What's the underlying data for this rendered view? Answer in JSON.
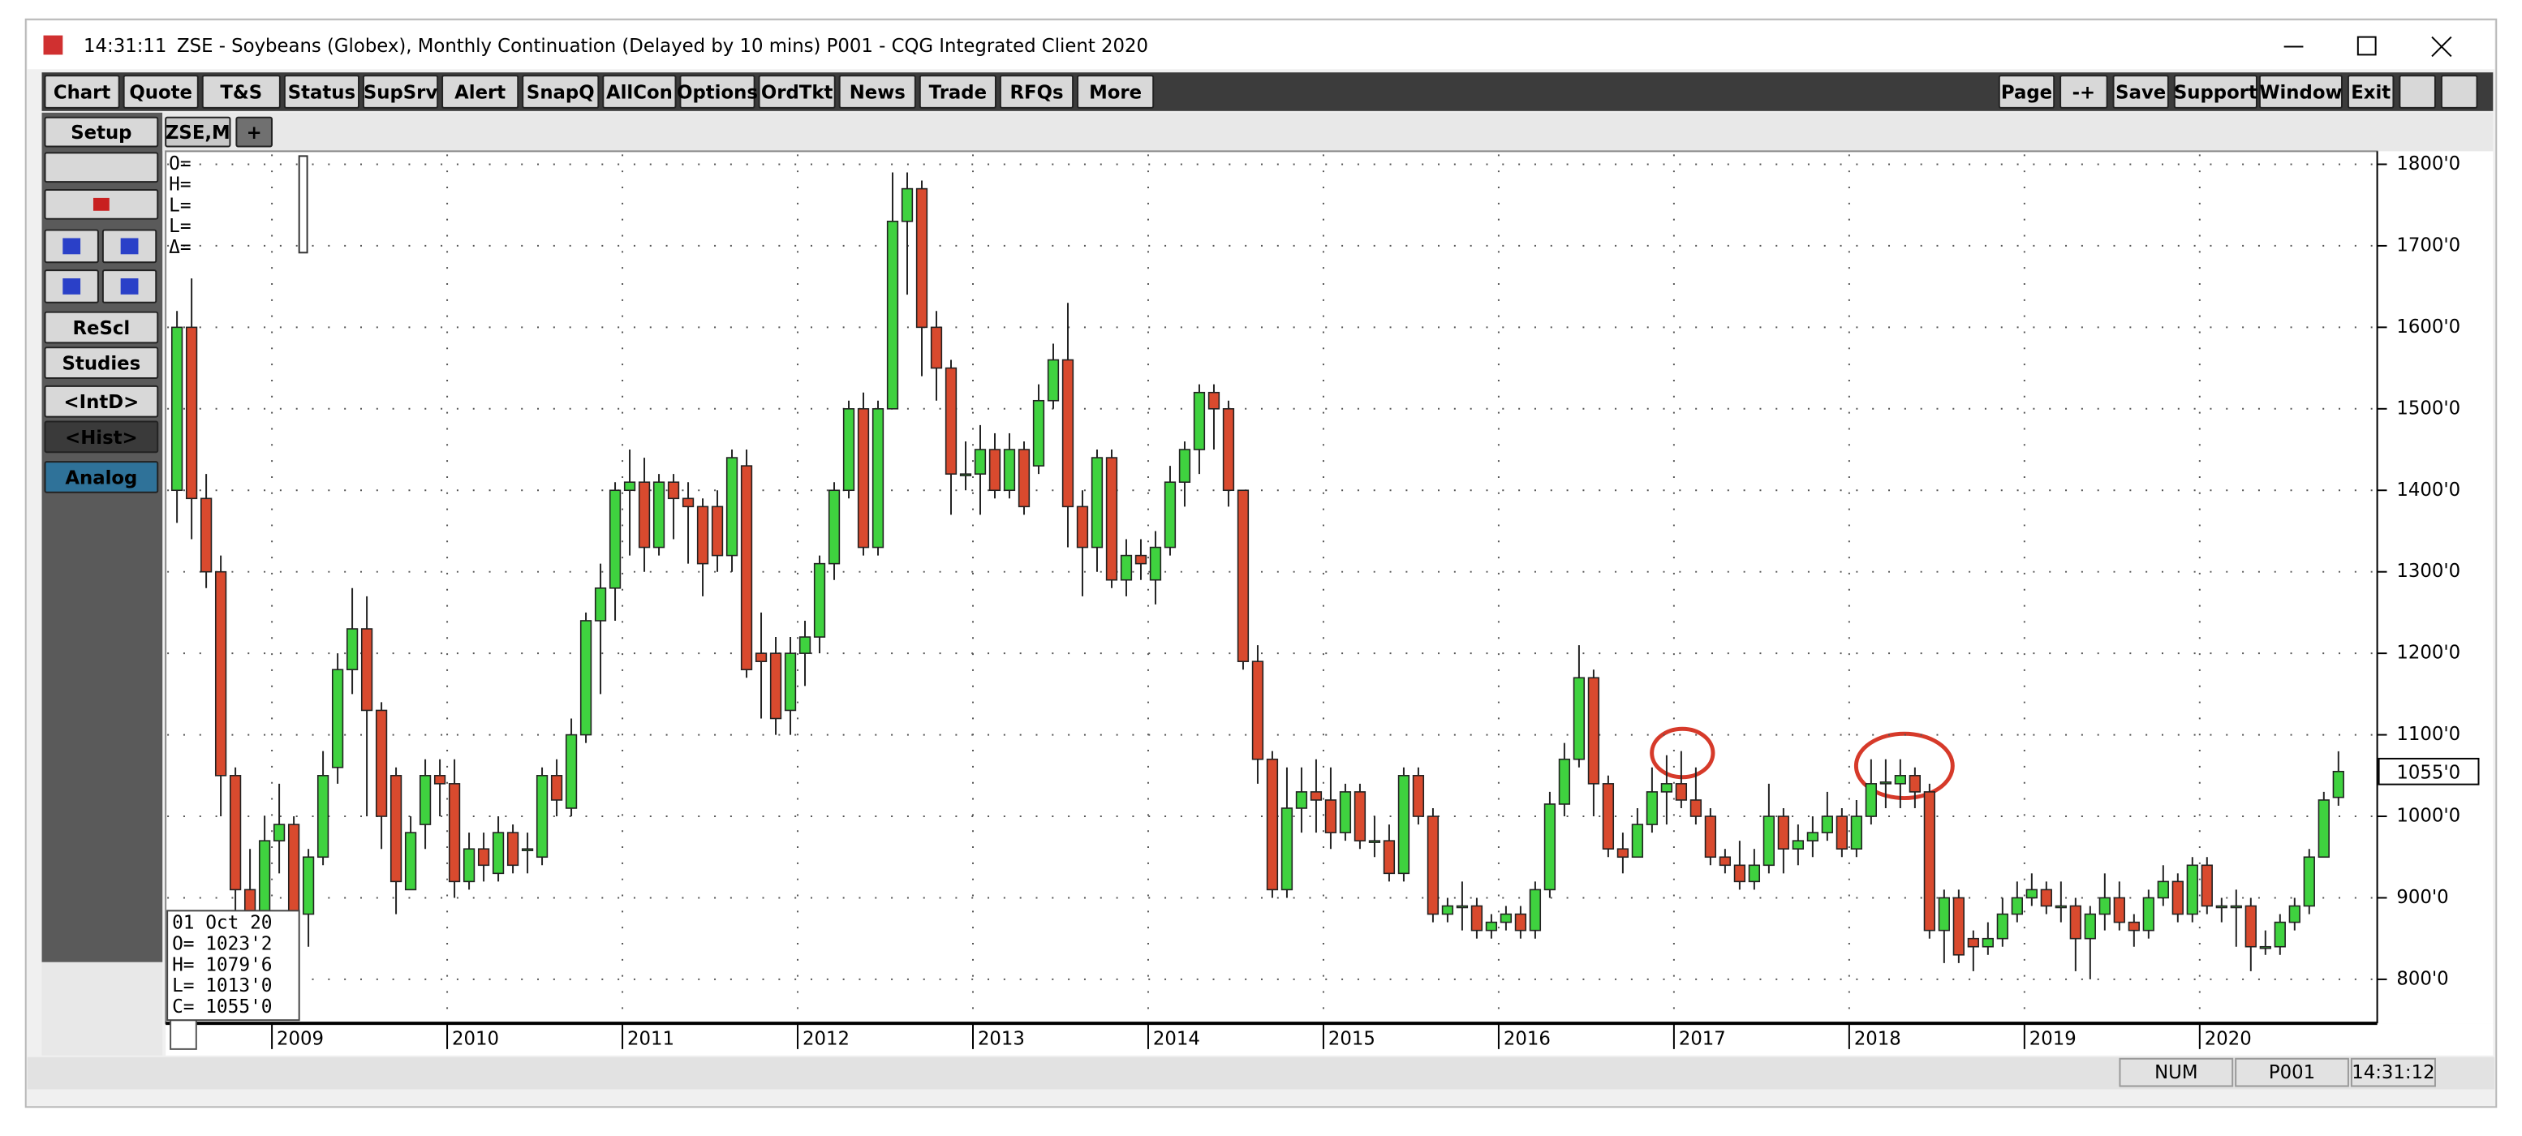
{
  "window": {
    "time": "14:31:11",
    "title": "ZSE - Soybeans (Globex), Monthly Continuation (Delayed by 10 mins)   P001 - CQG Integrated Client 2020"
  },
  "toolbar": {
    "left": [
      "Chart",
      "Quote",
      "T&S",
      "Status",
      "SupSrv",
      "Alert",
      "SnapQ",
      "AllCon",
      "Options",
      "OrdTkt",
      "News",
      "Trade",
      "RFQs",
      "More"
    ],
    "right": [
      "Page",
      "-+",
      "Save",
      "Support",
      "Window",
      "Exit"
    ]
  },
  "sidebar": {
    "setup": "Setup",
    "rescale": "ReScl",
    "studies": "Studies",
    "intd": "<IntD>",
    "hist": "<Hist>",
    "analog": "Analog"
  },
  "tab": {
    "label": "ZSE,M",
    "add": "+"
  },
  "status": {
    "num": "NUM",
    "page": "P001",
    "time": "14:31:12"
  },
  "chart_data": {
    "type": "candlestick",
    "categories": [
      null,
      null,
      null,
      null,
      null,
      null,
      null,
      "2009",
      null,
      null,
      null,
      null,
      null,
      null,
      null,
      null,
      null,
      null,
      null,
      "2010",
      null,
      null,
      null,
      null,
      null,
      null,
      null,
      null,
      null,
      null,
      null,
      "2011",
      null,
      null,
      null,
      null,
      null,
      null,
      null,
      null,
      null,
      null,
      null,
      "2012",
      null,
      null,
      null,
      null,
      null,
      null,
      null,
      null,
      null,
      null,
      null,
      "2013",
      null,
      null,
      null,
      null,
      null,
      null,
      null,
      null,
      null,
      null,
      null,
      "2014",
      null,
      null,
      null,
      null,
      null,
      null,
      null,
      null,
      null,
      null,
      null,
      "2015",
      null,
      null,
      null,
      null,
      null,
      null,
      null,
      null,
      null,
      null,
      null,
      "2016",
      null,
      null,
      null,
      null,
      null,
      null,
      null,
      null,
      null,
      null,
      null,
      "2017",
      null,
      null,
      null,
      null,
      null,
      null,
      null,
      null,
      null,
      null,
      null,
      "2018",
      null,
      null,
      null,
      null,
      null,
      null,
      null,
      null,
      null,
      null,
      null,
      "2019",
      null,
      null,
      null,
      null,
      null,
      null,
      null,
      null,
      null,
      null,
      null,
      "2020",
      null,
      null,
      null,
      null,
      null,
      null,
      null,
      null,
      null
    ],
    "open": [
      1400,
      1600,
      1390,
      1300,
      1050,
      910,
      880,
      970,
      990,
      880,
      950,
      1060,
      1180,
      1230,
      1130,
      1050,
      910,
      990,
      1050,
      1040,
      920,
      960,
      930,
      980,
      960,
      950,
      1050,
      1010,
      1100,
      1240,
      1280,
      1400,
      1410,
      1330,
      1410,
      1390,
      1380,
      1380,
      1320,
      1430,
      1200,
      1200,
      1130,
      1200,
      1220,
      1310,
      1400,
      1500,
      1330,
      1500,
      1730,
      1770,
      1600,
      1550,
      1420,
      1420,
      1450,
      1400,
      1450,
      1430,
      1510,
      1560,
      1380,
      1330,
      1440,
      1290,
      1320,
      1290,
      1330,
      1410,
      1450,
      1520,
      1500,
      1400,
      1190,
      1070,
      910,
      1010,
      1030,
      1020,
      980,
      1030,
      970,
      970,
      930,
      1050,
      1000,
      880,
      890,
      890,
      860,
      870,
      880,
      860,
      910,
      1015,
      1070,
      1170,
      1040,
      960,
      950,
      990,
      1030,
      1040,
      1020,
      1000,
      950,
      940,
      920,
      940,
      1000,
      960,
      970,
      980,
      1000,
      960,
      1000,
      1040,
      1040,
      1050,
      1030,
      860,
      900,
      850,
      840,
      850,
      880,
      900,
      910,
      890,
      890,
      850,
      880,
      900,
      870,
      860,
      900,
      920,
      880,
      940,
      890,
      890,
      890,
      840,
      840,
      870,
      890,
      950,
      1023.25
    ],
    "high": [
      1620,
      1660,
      1420,
      1320,
      1060,
      960,
      1000,
      1040,
      1000,
      960,
      1080,
      1200,
      1280,
      1270,
      1140,
      1060,
      1000,
      1070,
      1070,
      1070,
      980,
      980,
      1000,
      990,
      980,
      1060,
      1070,
      1120,
      1250,
      1310,
      1410,
      1450,
      1440,
      1420,
      1420,
      1410,
      1390,
      1400,
      1450,
      1450,
      1250,
      1220,
      1220,
      1240,
      1320,
      1410,
      1510,
      1520,
      1510,
      1790,
      1790,
      1780,
      1620,
      1560,
      1460,
      1480,
      1470,
      1470,
      1460,
      1530,
      1580,
      1630,
      1400,
      1450,
      1450,
      1340,
      1340,
      1350,
      1430,
      1460,
      1530,
      1530,
      1510,
      1400,
      1210,
      1080,
      1060,
      1060,
      1070,
      1060,
      1040,
      1040,
      1000,
      990,
      1060,
      1060,
      1010,
      900,
      920,
      900,
      880,
      890,
      890,
      920,
      1030,
      1090,
      1210,
      1180,
      1050,
      980,
      1010,
      1060,
      1075,
      1080,
      1060,
      1010,
      960,
      970,
      960,
      1040,
      1010,
      990,
      1000,
      1030,
      1010,
      1020,
      1070,
      1070,
      1070,
      1060,
      1040,
      910,
      910,
      860,
      870,
      900,
      920,
      930,
      920,
      920,
      900,
      890,
      930,
      920,
      880,
      910,
      940,
      930,
      950,
      950,
      900,
      910,
      900,
      860,
      880,
      900,
      960,
      1030,
      1079.75
    ],
    "low": [
      1360,
      1340,
      1280,
      1000,
      860,
      780,
      840,
      930,
      860,
      840,
      940,
      1040,
      1150,
      1000,
      960,
      880,
      910,
      960,
      1000,
      900,
      910,
      920,
      920,
      930,
      930,
      940,
      1000,
      1000,
      1090,
      1150,
      1240,
      1320,
      1300,
      1320,
      1340,
      1310,
      1270,
      1300,
      1300,
      1170,
      1120,
      1100,
      1100,
      1160,
      1200,
      1290,
      1390,
      1320,
      1320,
      1500,
      1640,
      1540,
      1510,
      1370,
      1400,
      1370,
      1390,
      1390,
      1370,
      1420,
      1500,
      1330,
      1270,
      1300,
      1280,
      1270,
      1290,
      1260,
      1320,
      1380,
      1420,
      1450,
      1380,
      1180,
      1040,
      900,
      900,
      980,
      980,
      960,
      970,
      960,
      950,
      920,
      920,
      990,
      870,
      870,
      860,
      850,
      850,
      860,
      850,
      850,
      900,
      1000,
      1060,
      1000,
      950,
      930,
      950,
      980,
      990,
      1010,
      990,
      940,
      930,
      910,
      910,
      930,
      930,
      940,
      950,
      970,
      950,
      950,
      990,
      1010,
      1010,
      1010,
      850,
      820,
      820,
      810,
      830,
      840,
      870,
      890,
      880,
      870,
      810,
      800,
      860,
      860,
      840,
      850,
      890,
      870,
      870,
      880,
      870,
      840,
      810,
      830,
      830,
      860,
      880,
      950,
      1013
    ],
    "close": [
      1600,
      1390,
      1300,
      1050,
      910,
      880,
      970,
      990,
      870,
      950,
      1050,
      1180,
      1230,
      1130,
      1000,
      920,
      980,
      1050,
      1040,
      920,
      960,
      940,
      980,
      940,
      960,
      1050,
      1020,
      1100,
      1240,
      1280,
      1400,
      1410,
      1330,
      1410,
      1390,
      1380,
      1310,
      1320,
      1440,
      1180,
      1190,
      1120,
      1200,
      1220,
      1310,
      1400,
      1500,
      1330,
      1500,
      1730,
      1770,
      1600,
      1550,
      1420,
      1420,
      1450,
      1400,
      1450,
      1380,
      1510,
      1560,
      1380,
      1330,
      1440,
      1290,
      1320,
      1310,
      1330,
      1410,
      1450,
      1520,
      1500,
      1400,
      1190,
      1070,
      910,
      1010,
      1030,
      1020,
      980,
      1030,
      970,
      970,
      930,
      1050,
      1000,
      880,
      890,
      890,
      860,
      870,
      880,
      860,
      910,
      1015,
      1070,
      1170,
      1040,
      960,
      950,
      990,
      1030,
      1040,
      1020,
      1000,
      950,
      940,
      920,
      940,
      1000,
      960,
      970,
      980,
      1000,
      960,
      1000,
      1040,
      1042,
      1050,
      1030,
      860,
      900,
      830,
      840,
      850,
      880,
      900,
      910,
      890,
      890,
      850,
      880,
      900,
      870,
      860,
      900,
      920,
      880,
      940,
      890,
      890,
      890,
      840,
      840,
      870,
      890,
      950,
      1020,
      1055
    ],
    "up_color": "#3fd23f",
    "down_color": "#d94a2e",
    "ylim": [
      746,
      1816
    ],
    "yticks": [
      {
        "value": 800,
        "label": "800'0"
      },
      {
        "value": 900,
        "label": "900'0"
      },
      {
        "value": 1000,
        "label": "1000'0"
      },
      {
        "value": 1100,
        "label": "1100'0"
      },
      {
        "value": 1200,
        "label": "1200'0"
      },
      {
        "value": 1300,
        "label": "1300'0"
      },
      {
        "value": 1400,
        "label": "1400'0"
      },
      {
        "value": 1500,
        "label": "1500'0"
      },
      {
        "value": 1600,
        "label": "1600'0"
      },
      {
        "value": 1700,
        "label": "1700'0"
      },
      {
        "value": 1800,
        "label": "1800'0"
      }
    ],
    "grid": true,
    "last_price_label": "1055'0",
    "cursor_labels": [
      "O=",
      "H=",
      "L=",
      "L=",
      "Δ="
    ],
    "cursor_info": {
      "date": "01 Oct 20",
      "lines": [
        "O=  1023'2",
        "H=  1079'6",
        "L=  1013'0",
        "C=  1055'0"
      ]
    }
  }
}
